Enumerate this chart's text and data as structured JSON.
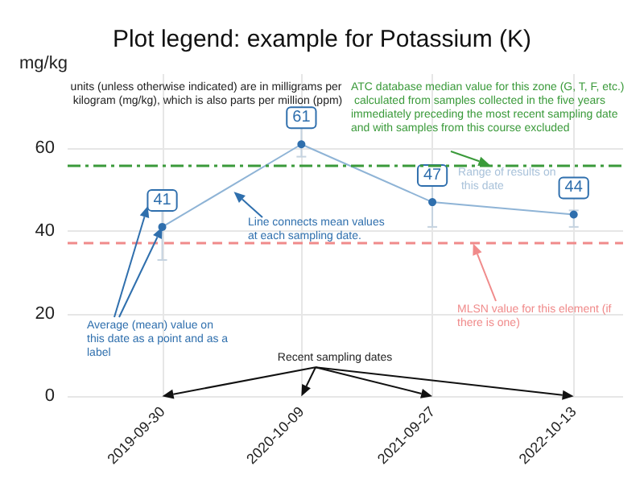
{
  "chart_data": {
    "type": "line",
    "title": "Plot legend: example for Potassium (K)",
    "ylabel": "mg/kg",
    "x": [
      "2019-09-30",
      "2020-10-09",
      "2021-09-27",
      "2022-10-13"
    ],
    "series": [
      {
        "color": "#2f6fad",
        "values": [
          41,
          61,
          47,
          44
        ],
        "errors": [
          [
            33,
            47
          ],
          [
            58,
            68
          ],
          [
            41,
            55
          ],
          [
            41,
            45
          ]
        ]
      }
    ],
    "xlim": [
      "2019-01-18",
      "2023-02-23"
    ],
    "xticks": [
      "2019-09-30",
      "2020-10-09",
      "2021-09-27",
      "2022-10-13"
    ],
    "ylim": [
      0,
      78
    ],
    "yticks": [
      0,
      20,
      40,
      60
    ],
    "ref_lines": [
      {
        "axis": "y",
        "value": 56,
        "color": "#3a9a3a",
        "line_style": "dashdot"
      },
      {
        "axis": "y",
        "value": 37,
        "color": "#f08a8a",
        "line_style": "dashed"
      }
    ],
    "annotations": [
      "units (unless otherwise indicated) are in milligrams per kilogram (mg/kg), which is also parts per million (ppm)",
      {
        "text": "ATC database median value for this zone (G, T, F, etc.) calculated from samples collected in the five years immediately preceding the most recent sampling date and with samples from this course excluded",
        "x": "2022-03-01",
        "y": 56
      },
      {
        "text": "Line connects mean values at each sampling date.",
        "x": "2020-04-10",
        "y": 49.5
      },
      {
        "text": "Average (mean) value on this date as a point and as a label",
        "x": "2019-09-30",
        "y": 41
      },
      {
        "text": "Range of results on this date",
        "x": "2021-09-27",
        "y": 55
      },
      {
        "text": "MLSN value for this element (if there is one)",
        "x": "2022-01-15",
        "y": 37
      },
      "Recent sampling dates"
    ],
    "data_labels": true,
    "marker": "circle",
    "line_style": "solid",
    "grid": true
  }
}
